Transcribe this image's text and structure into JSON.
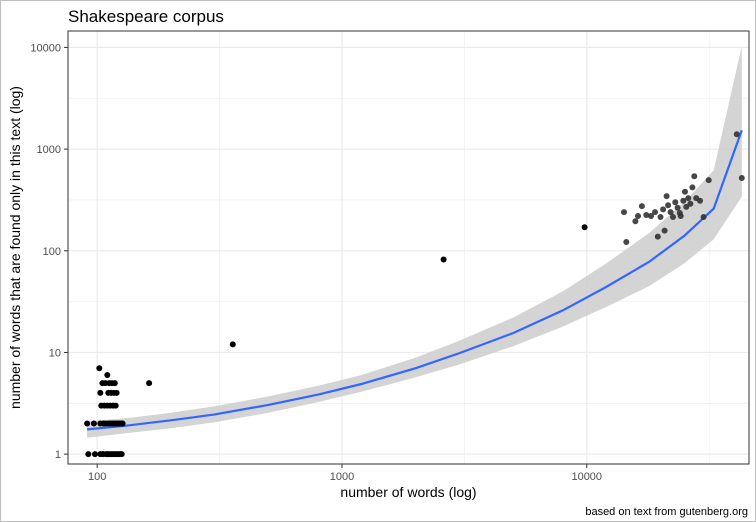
{
  "chart_data": {
    "type": "scatter",
    "title": "Shakespeare corpus",
    "xlabel": "number of words (log)",
    "ylabel": "number of words that are found only in this text (log)",
    "caption": "based on text from gutenberg.org",
    "x_scale": "log10",
    "y_scale": "log10",
    "xlim": [
      76,
      46000
    ],
    "ylim": [
      0.8,
      14500
    ],
    "x_ticks": [
      100,
      1000,
      10000
    ],
    "x_tick_labels": [
      "100",
      "1000",
      "10000"
    ],
    "y_ticks": [
      1,
      10,
      100,
      1000,
      10000
    ],
    "y_tick_labels": [
      "1",
      "10",
      "100",
      "1000",
      "10000"
    ],
    "grid": true,
    "colors": {
      "points": "#000000",
      "points_dense": "#333333",
      "fit_line": "#3366ff",
      "ribbon": "#cccccc",
      "grid": "#ebebeb",
      "panel_border": "#333333"
    },
    "points": [
      {
        "x": 91,
        "y": 2
      },
      {
        "x": 92,
        "y": 1
      },
      {
        "x": 97,
        "y": 2
      },
      {
        "x": 98,
        "y": 1
      },
      {
        "x": 102,
        "y": 7
      },
      {
        "x": 103,
        "y": 4
      },
      {
        "x": 103,
        "y": 2
      },
      {
        "x": 103,
        "y": 1
      },
      {
        "x": 104,
        "y": 3
      },
      {
        "x": 105,
        "y": 5
      },
      {
        "x": 105,
        "y": 1
      },
      {
        "x": 106,
        "y": 2
      },
      {
        "x": 106,
        "y": 1
      },
      {
        "x": 107,
        "y": 3
      },
      {
        "x": 108,
        "y": 5
      },
      {
        "x": 108,
        "y": 2
      },
      {
        "x": 109,
        "y": 1
      },
      {
        "x": 110,
        "y": 6
      },
      {
        "x": 110,
        "y": 3
      },
      {
        "x": 110,
        "y": 1
      },
      {
        "x": 111,
        "y": 4
      },
      {
        "x": 111,
        "y": 2
      },
      {
        "x": 112,
        "y": 5
      },
      {
        "x": 112,
        "y": 1
      },
      {
        "x": 113,
        "y": 3
      },
      {
        "x": 113,
        "y": 2
      },
      {
        "x": 114,
        "y": 4
      },
      {
        "x": 114,
        "y": 1
      },
      {
        "x": 115,
        "y": 5
      },
      {
        "x": 115,
        "y": 2
      },
      {
        "x": 116,
        "y": 3
      },
      {
        "x": 116,
        "y": 1
      },
      {
        "x": 117,
        "y": 4
      },
      {
        "x": 117,
        "y": 2
      },
      {
        "x": 118,
        "y": 5
      },
      {
        "x": 118,
        "y": 1
      },
      {
        "x": 119,
        "y": 3
      },
      {
        "x": 119,
        "y": 2
      },
      {
        "x": 120,
        "y": 4
      },
      {
        "x": 120,
        "y": 1
      },
      {
        "x": 121,
        "y": 2
      },
      {
        "x": 122,
        "y": 1
      },
      {
        "x": 123,
        "y": 2
      },
      {
        "x": 124,
        "y": 1
      },
      {
        "x": 125,
        "y": 2
      },
      {
        "x": 126,
        "y": 1
      },
      {
        "x": 127,
        "y": 2
      },
      {
        "x": 163,
        "y": 5
      },
      {
        "x": 358,
        "y": 12
      },
      {
        "x": 2600,
        "y": 82
      },
      {
        "x": 9800,
        "y": 170
      },
      {
        "x": 14200,
        "y": 240
      },
      {
        "x": 14500,
        "y": 122
      },
      {
        "x": 15800,
        "y": 195
      },
      {
        "x": 16200,
        "y": 220
      },
      {
        "x": 16800,
        "y": 275
      },
      {
        "x": 17500,
        "y": 225
      },
      {
        "x": 18300,
        "y": 220
      },
      {
        "x": 19000,
        "y": 240
      },
      {
        "x": 19500,
        "y": 138
      },
      {
        "x": 20000,
        "y": 215
      },
      {
        "x": 20500,
        "y": 255
      },
      {
        "x": 20800,
        "y": 158
      },
      {
        "x": 21200,
        "y": 345
      },
      {
        "x": 21500,
        "y": 280
      },
      {
        "x": 22000,
        "y": 240
      },
      {
        "x": 22500,
        "y": 215
      },
      {
        "x": 23000,
        "y": 300
      },
      {
        "x": 23500,
        "y": 265
      },
      {
        "x": 24000,
        "y": 235
      },
      {
        "x": 24200,
        "y": 220
      },
      {
        "x": 24800,
        "y": 310
      },
      {
        "x": 25200,
        "y": 380
      },
      {
        "x": 25500,
        "y": 270
      },
      {
        "x": 26000,
        "y": 330
      },
      {
        "x": 26500,
        "y": 290
      },
      {
        "x": 27000,
        "y": 420
      },
      {
        "x": 27500,
        "y": 540
      },
      {
        "x": 28000,
        "y": 330
      },
      {
        "x": 29000,
        "y": 310
      },
      {
        "x": 30000,
        "y": 215
      },
      {
        "x": 31500,
        "y": 495
      },
      {
        "x": 41000,
        "y": 1400
      },
      {
        "x": 43000,
        "y": 520
      }
    ],
    "fit_line": {
      "x": [
        91,
        130,
        200,
        300,
        500,
        800,
        1200,
        2000,
        3000,
        5000,
        8000,
        12000,
        18000,
        25000,
        33000,
        43000
      ],
      "y": [
        1.75,
        1.9,
        2.15,
        2.45,
        3.05,
        3.85,
        4.9,
        7.0,
        9.8,
        15.5,
        26,
        44,
        78,
        140,
        260,
        1530
      ]
    },
    "ribbon": {
      "x": [
        91,
        130,
        200,
        300,
        500,
        800,
        1200,
        2000,
        3000,
        5000,
        8000,
        12000,
        18000,
        25000,
        33000,
        43000
      ],
      "ymin": [
        1.45,
        1.6,
        1.8,
        2.05,
        2.55,
        3.25,
        4.1,
        5.7,
        7.6,
        11.5,
        18,
        28,
        45,
        75,
        130,
        340
      ],
      "ymax": [
        2.1,
        2.25,
        2.55,
        2.95,
        3.7,
        4.7,
        6.0,
        8.9,
        13,
        22,
        40,
        75,
        150,
        300,
        620,
        10300
      ]
    }
  }
}
